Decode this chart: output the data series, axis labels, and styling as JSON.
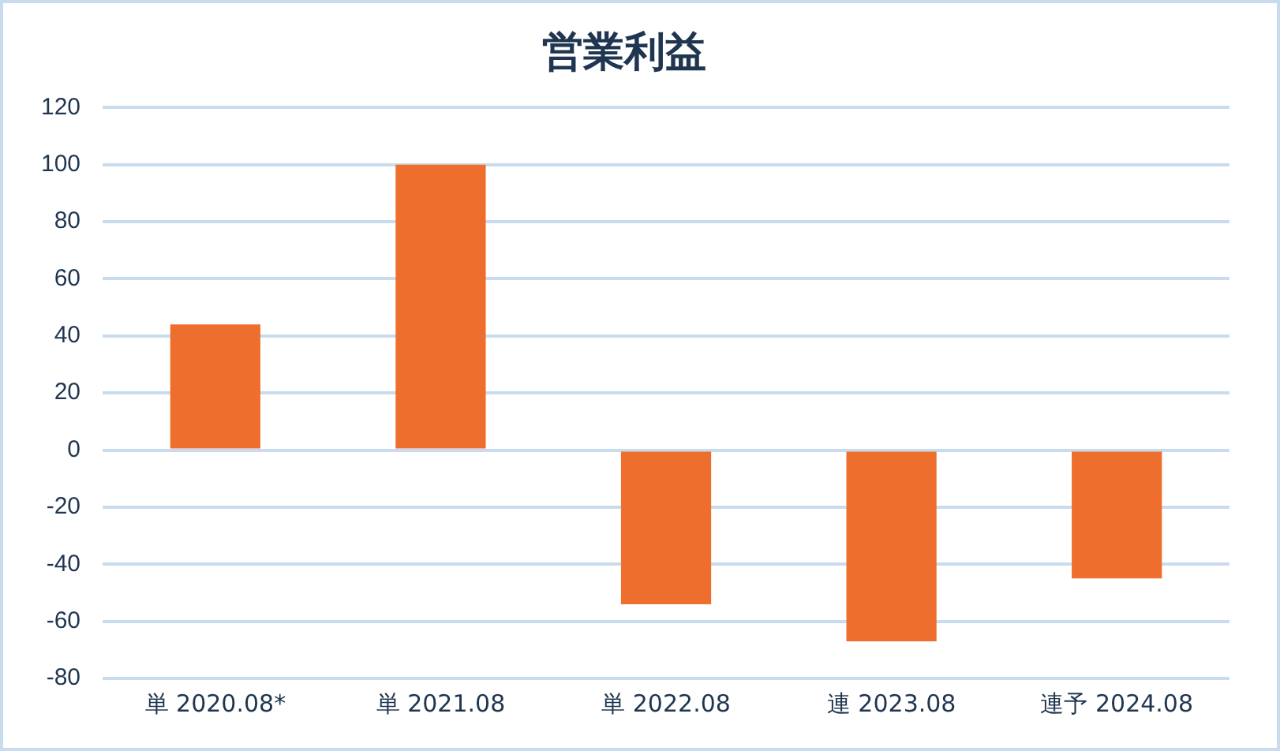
{
  "chart_data": {
    "type": "bar",
    "title": "営業利益",
    "categories": [
      "単 2020.08*",
      "単 2021.08",
      "単 2022.08",
      "連 2023.08",
      "連予 2024.08"
    ],
    "values": [
      44,
      100,
      -54,
      -67,
      -45
    ],
    "color": "#ee6f2d",
    "ylim": [
      -80,
      120
    ],
    "yticks": [
      -80,
      -60,
      -40,
      -20,
      0,
      20,
      40,
      60,
      80,
      100,
      120
    ],
    "grid": "y",
    "legend": false
  }
}
